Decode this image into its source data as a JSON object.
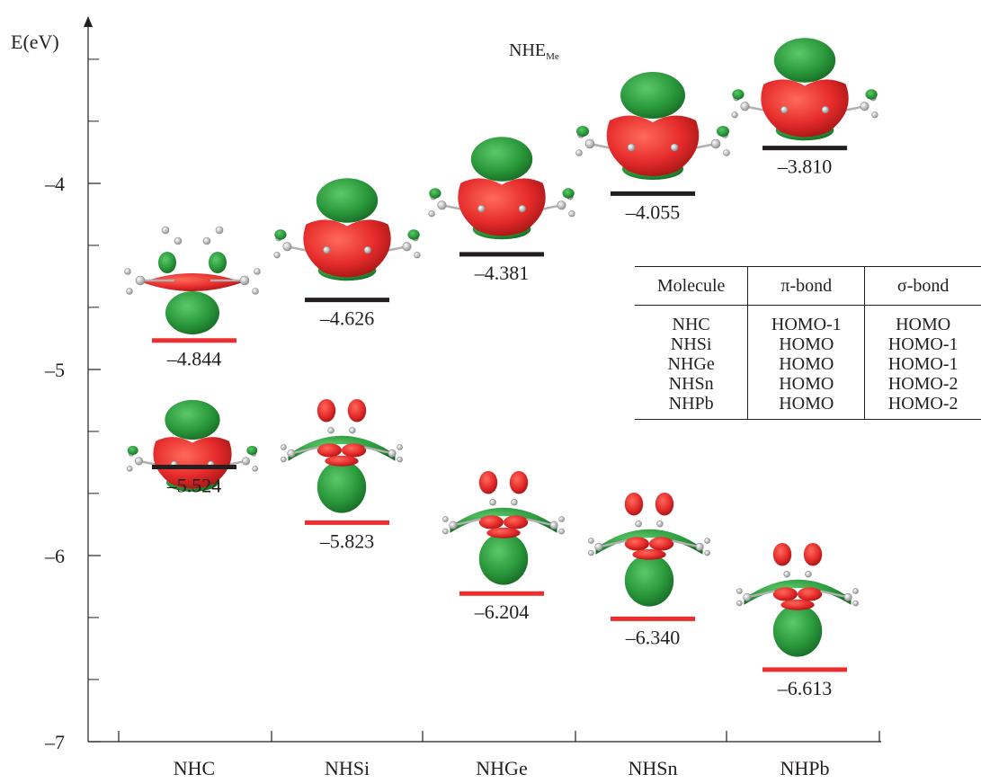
{
  "chart_data": {
    "type": "scatter",
    "title": "NHE",
    "title_subscript": "Me",
    "ylabel": "E(eV)",
    "ylim": [
      -7,
      -3.2
    ],
    "yticks": [
      -7,
      -6,
      -5,
      -4
    ],
    "yticks_minor": [
      -6.666,
      -6.333,
      -5.666,
      -5.333,
      -4.666,
      -4.333,
      -3.666,
      -3.333
    ],
    "categories": [
      "NHC",
      "NHSi",
      "NHGe",
      "NHSn",
      "NHPb"
    ],
    "series": [
      {
        "color": "#ee2d2e",
        "values": [
          -4.844,
          -5.823,
          -6.204,
          -6.34,
          -6.613
        ],
        "labels": [
          "–4.844",
          "–5.823",
          "–6.204",
          "–6.340",
          "–6.613"
        ]
      },
      {
        "color": "#231f20",
        "values": [
          -5.524,
          -4.626,
          -4.381,
          -4.055,
          -3.81
        ],
        "labels": [
          "–5.524",
          "–4.626",
          "–4.381",
          "–4.055",
          "–3.810"
        ]
      }
    ],
    "orbital_colors": {
      "positive": "#e52b2b",
      "negative": "#2b9a3c",
      "atom": "#cfcfcf"
    }
  },
  "table": {
    "headers": [
      "Molecule",
      "π-bond",
      "σ-bond"
    ],
    "rows": [
      [
        "NHC",
        "HOMO-1",
        "HOMO"
      ],
      [
        "NHSi",
        "HOMO",
        "HOMO-1"
      ],
      [
        "NHGe",
        "HOMO",
        "HOMO-1"
      ],
      [
        "NHSn",
        "HOMO",
        "HOMO-2"
      ],
      [
        "NHPb",
        "HOMO",
        "HOMO-2"
      ]
    ]
  }
}
